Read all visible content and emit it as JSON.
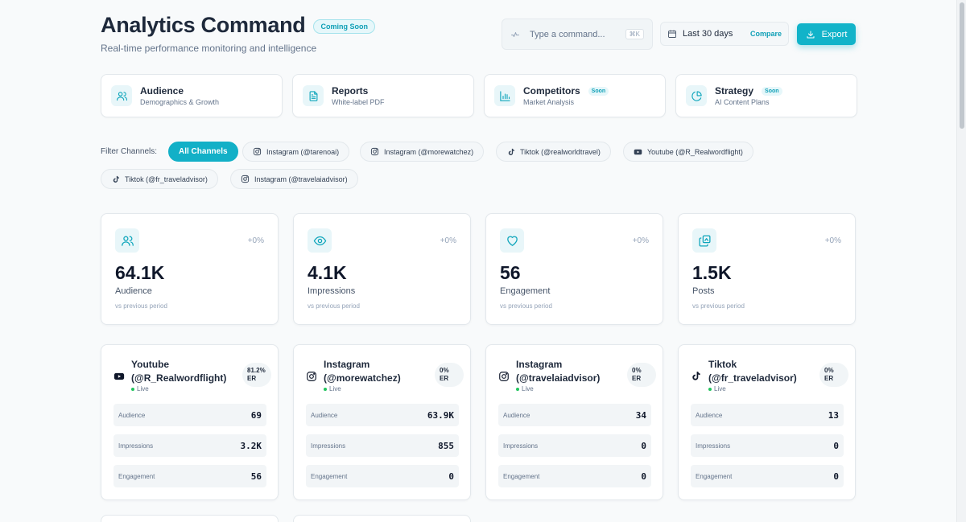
{
  "header": {
    "title": "Analytics Command",
    "badge": "Coming Soon",
    "subtitle": "Real-time performance monitoring and intelligence",
    "command": {
      "placeholder": "Type a command...",
      "shortcut": "⌘K"
    },
    "date_range": {
      "label": "Last 30 days",
      "compare": "Compare"
    },
    "export_label": "Export"
  },
  "nav": [
    {
      "label": "Audience",
      "sub": "Demographics & Growth",
      "soon": "",
      "icon": "users-icon"
    },
    {
      "label": "Reports",
      "sub": "White-label PDF",
      "soon": "",
      "icon": "file-icon"
    },
    {
      "label": "Competitors",
      "sub": "Market Analysis",
      "soon": "Soon",
      "icon": "bar-chart-icon"
    },
    {
      "label": "Strategy",
      "sub": "AI Content Plans",
      "soon": "Soon",
      "icon": "pie-chart-icon"
    }
  ],
  "filters": {
    "label": "Filter Channels:",
    "chips": [
      {
        "label": "All Channels",
        "platform": "",
        "active": true
      },
      {
        "label": "Instagram (@tarenoai)",
        "platform": "instagram"
      },
      {
        "label": "Instagram (@morewatchez)",
        "platform": "instagram"
      },
      {
        "label": "Tiktok (@realworldtravel)",
        "platform": "tiktok"
      },
      {
        "label": "Youtube (@R_Realwordflight)",
        "platform": "youtube"
      },
      {
        "label": "Tiktok (@fr_traveladvisor)",
        "platform": "tiktok"
      },
      {
        "label": "Instagram (@travelaiadvisor)",
        "platform": "instagram"
      }
    ]
  },
  "stats": [
    {
      "value": "64.1K",
      "label": "Audience",
      "delta": "+0%",
      "note": "vs previous period",
      "icon": "users-icon"
    },
    {
      "value": "4.1K",
      "label": "Impressions",
      "delta": "+0%",
      "note": "vs previous period",
      "icon": "eye-icon"
    },
    {
      "value": "56",
      "label": "Engagement",
      "delta": "+0%",
      "note": "vs previous period",
      "icon": "heart-icon"
    },
    {
      "value": "1.5K",
      "label": "Posts",
      "delta": "+0%",
      "note": "vs previous period",
      "icon": "posts-icon"
    }
  ],
  "channels": [
    {
      "name": "Youtube (@R_Realwordflight)",
      "platform": "youtube",
      "er": "81.2%",
      "er_label": "ER",
      "status": "Live",
      "metrics": [
        {
          "k": "Audience",
          "v": "69"
        },
        {
          "k": "Impressions",
          "v": "3.2K"
        },
        {
          "k": "Engagement",
          "v": "56"
        }
      ]
    },
    {
      "name": "Instagram (@morewatchez)",
      "platform": "instagram",
      "er": "0%",
      "er_label": "ER",
      "status": "Live",
      "metrics": [
        {
          "k": "Audience",
          "v": "63.9K"
        },
        {
          "k": "Impressions",
          "v": "855"
        },
        {
          "k": "Engagement",
          "v": "0"
        }
      ]
    },
    {
      "name": "Instagram (@travelaiadvisor)",
      "platform": "instagram",
      "er": "0%",
      "er_label": "ER",
      "status": "Live",
      "metrics": [
        {
          "k": "Audience",
          "v": "34"
        },
        {
          "k": "Impressions",
          "v": "0"
        },
        {
          "k": "Engagement",
          "v": "0"
        }
      ]
    },
    {
      "name": "Tiktok (@fr_traveladvisor)",
      "platform": "tiktok",
      "er": "0%",
      "er_label": "ER",
      "status": "Live",
      "metrics": [
        {
          "k": "Audience",
          "v": "13"
        },
        {
          "k": "Impressions",
          "v": "0"
        },
        {
          "k": "Engagement",
          "v": "0"
        }
      ]
    }
  ],
  "colors": {
    "accent": "#11b3c9",
    "live": "#22c55e",
    "text": "#0f172a",
    "muted": "#64748b"
  }
}
